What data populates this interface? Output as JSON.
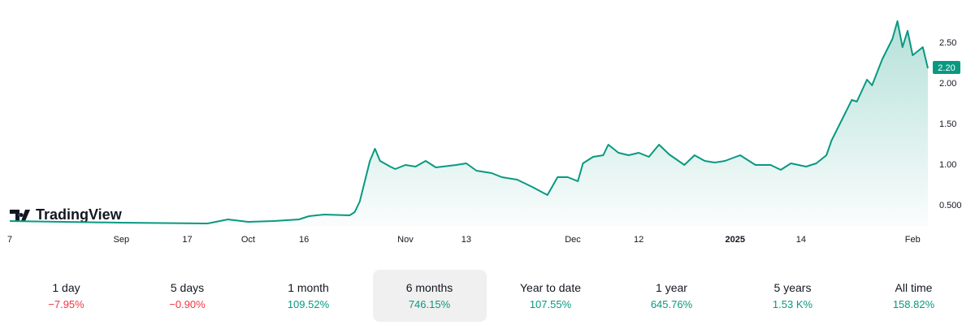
{
  "chart_data": {
    "type": "area",
    "x": [
      0,
      22,
      39,
      43,
      47,
      52,
      57,
      59,
      62,
      67,
      68,
      69,
      70,
      71,
      72,
      73,
      75,
      76,
      78,
      80,
      82,
      84,
      88,
      90,
      92,
      95,
      97,
      100,
      103,
      106,
      108,
      110,
      112,
      113,
      115,
      117,
      118,
      120,
      122,
      124,
      126,
      128,
      130,
      133,
      135,
      137,
      139,
      141,
      144,
      147,
      150,
      152,
      154,
      157,
      159,
      161,
      162,
      164,
      166,
      167,
      169,
      170,
      172,
      174,
      175,
      176,
      177,
      178,
      180,
      181
    ],
    "values": [
      0.31,
      0.29,
      0.28,
      0.33,
      0.3,
      0.31,
      0.33,
      0.37,
      0.39,
      0.38,
      0.42,
      0.55,
      0.8,
      1.05,
      1.2,
      1.05,
      0.98,
      0.95,
      1.0,
      0.98,
      1.05,
      0.97,
      1.0,
      1.02,
      0.93,
      0.9,
      0.85,
      0.82,
      0.73,
      0.63,
      0.85,
      0.85,
      0.8,
      1.02,
      1.1,
      1.12,
      1.25,
      1.15,
      1.12,
      1.15,
      1.1,
      1.25,
      1.13,
      1.0,
      1.12,
      1.05,
      1.03,
      1.05,
      1.12,
      1.0,
      1.0,
      0.94,
      1.02,
      0.98,
      1.02,
      1.12,
      1.3,
      1.55,
      1.8,
      1.78,
      2.05,
      1.98,
      2.3,
      2.55,
      2.77,
      2.45,
      2.65,
      2.35,
      2.45,
      2.19
    ],
    "color": "#089981",
    "xlim": [
      0,
      181
    ],
    "ylim": [
      0.25,
      2.93
    ],
    "xticks": [
      {
        "value": 0,
        "label": "7"
      },
      {
        "value": 22,
        "label": "Sep"
      },
      {
        "value": 35,
        "label": "17"
      },
      {
        "value": 47,
        "label": "Oct"
      },
      {
        "value": 58,
        "label": "16"
      },
      {
        "value": 78,
        "label": "Nov"
      },
      {
        "value": 90,
        "label": "13"
      },
      {
        "value": 111,
        "label": "Dec"
      },
      {
        "value": 124,
        "label": "12"
      },
      {
        "value": 143,
        "label": "2025"
      },
      {
        "value": 156,
        "label": "14"
      },
      {
        "value": 178,
        "label": "Feb"
      }
    ],
    "yticks": [
      {
        "value": 0.5,
        "label": "0.500"
      },
      {
        "value": 1,
        "label": "1.00"
      },
      {
        "value": 1.5,
        "label": "1.50"
      },
      {
        "value": 2,
        "label": "2.00"
      },
      {
        "value": 2.5,
        "label": "2.50"
      }
    ],
    "price_tag": {
      "value": 2.2,
      "label": "2.20"
    }
  },
  "logo": "TradingView",
  "selected_period": 3,
  "periods": [
    {
      "label": "1 day",
      "change": "−7.95%"
    },
    {
      "label": "5 days",
      "change": "−0.90%"
    },
    {
      "label": "1 month",
      "change": "109.52%"
    },
    {
      "label": "6 months",
      "change": "746.15%"
    },
    {
      "label": "Year to date",
      "change": "107.55%"
    },
    {
      "label": "1 year",
      "change": "645.76%"
    },
    {
      "label": "5 years",
      "change": "1.53 K%"
    },
    {
      "label": "All time",
      "change": "158.82%"
    }
  ]
}
